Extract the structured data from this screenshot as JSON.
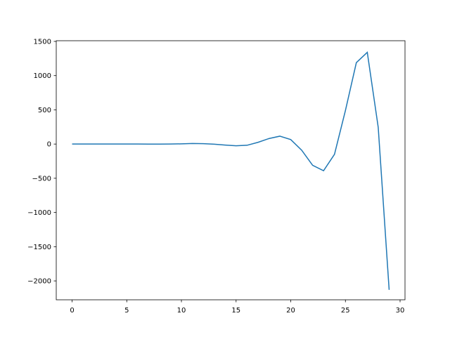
{
  "chart_data": {
    "type": "line",
    "title": "",
    "xlabel": "",
    "ylabel": "",
    "x": [
      0,
      1,
      2,
      3,
      4,
      5,
      6,
      7,
      8,
      9,
      10,
      11,
      12,
      13,
      14,
      15,
      16,
      17,
      18,
      19,
      20,
      21,
      22,
      23,
      24,
      25,
      26,
      27,
      28,
      29
    ],
    "series": [
      {
        "values": [
          0,
          0,
          0,
          0,
          0,
          0,
          0,
          -1,
          -1,
          0,
          3,
          8,
          6,
          -2,
          -15,
          -25,
          -18,
          25,
          80,
          115,
          65,
          -90,
          -310,
          -390,
          -150,
          490,
          1190,
          1340,
          245,
          -2130
        ],
        "color": "#1f77b4"
      }
    ],
    "xlim": [
      -1.45,
      30.45
    ],
    "ylim": [
      -2276,
      1510
    ],
    "xticks": [
      0,
      5,
      10,
      15,
      20,
      25,
      30
    ],
    "yticks": [
      -2000,
      -1500,
      -1000,
      -500,
      0,
      500,
      1000,
      1500
    ],
    "ytick_labels": [
      "−2000",
      "−1500",
      "−1000",
      "−500",
      "0",
      "500",
      "1000",
      "1500"
    ],
    "grid": false
  }
}
